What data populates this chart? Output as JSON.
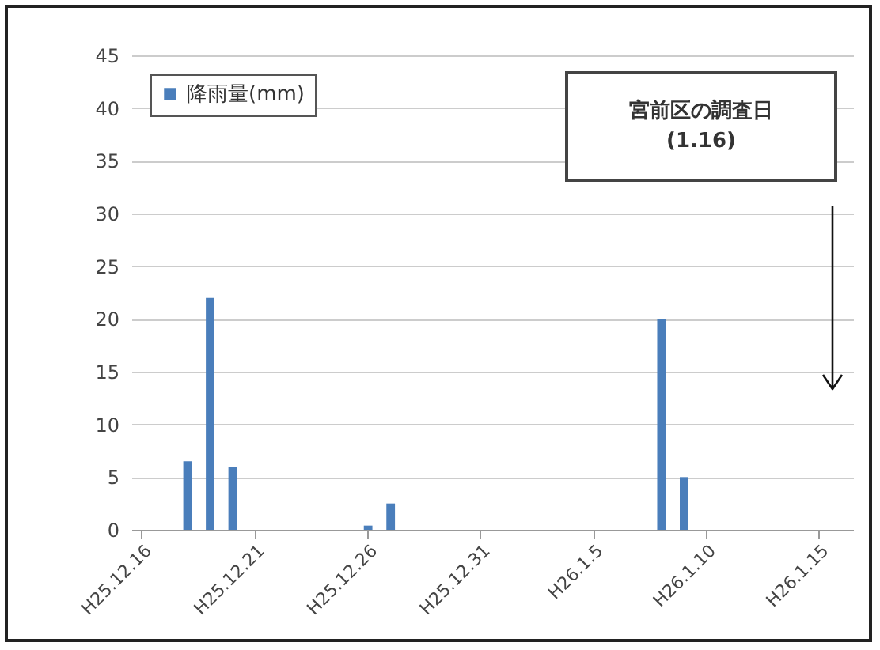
{
  "chart_data": {
    "type": "bar",
    "categories": [
      "H25.12.16",
      null,
      null,
      null,
      null,
      "H25.12.21",
      null,
      null,
      null,
      null,
      "H25.12.26",
      null,
      null,
      null,
      null,
      "H25.12.31",
      null,
      null,
      null,
      null,
      "H26.1.5",
      null,
      null,
      null,
      null,
      "H26.1.10",
      null,
      null,
      null,
      null,
      "H26.1.15",
      null
    ],
    "series": [
      {
        "name": "降雨量(mm)",
        "color": "#4a7ebb",
        "values": [
          0,
          0,
          6.5,
          22,
          6,
          0,
          0,
          0,
          0,
          0,
          0.4,
          2.5,
          0,
          0,
          0,
          0,
          0,
          0,
          0,
          0,
          0,
          0,
          0,
          20,
          5,
          0,
          0,
          0,
          0,
          0,
          0,
          0
        ]
      }
    ],
    "ylim": [
      0,
      45
    ],
    "yticks": [
      0,
      5,
      10,
      15,
      20,
      25,
      30,
      35,
      40,
      45
    ],
    "grid": "y",
    "legend": "top left",
    "annotations": [
      "宮前区の調査日\n(1.16)"
    ]
  }
}
